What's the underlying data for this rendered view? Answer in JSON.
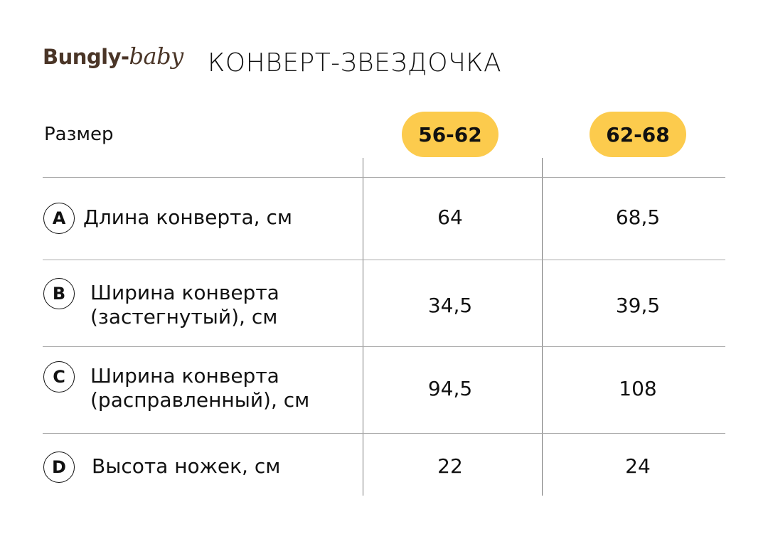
{
  "brand": {
    "part1": "Bungly-",
    "part2": "baby",
    "color": "#4a3527"
  },
  "title": "КОНВЕРТ-ЗВЕЗДОЧКА",
  "table": {
    "size_label": "Размер",
    "accent": "#fccb4d",
    "sizes": [
      "56-62",
      "62-68"
    ],
    "rows": [
      {
        "letter": "A",
        "line1": "Длина конверта, см",
        "line2": "",
        "values": [
          "64",
          "68,5"
        ]
      },
      {
        "letter": "B",
        "line1": "Ширина конверта",
        "line2": "(застегнутый), см",
        "values": [
          "34,5",
          "39,5"
        ]
      },
      {
        "letter": "C",
        "line1": "Ширина конверта",
        "line2": "(расправленный), см",
        "values": [
          "94,5",
          "108"
        ]
      },
      {
        "letter": "D",
        "line1": "Высота ножек, см",
        "line2": "",
        "values": [
          "22",
          "24"
        ]
      }
    ]
  }
}
